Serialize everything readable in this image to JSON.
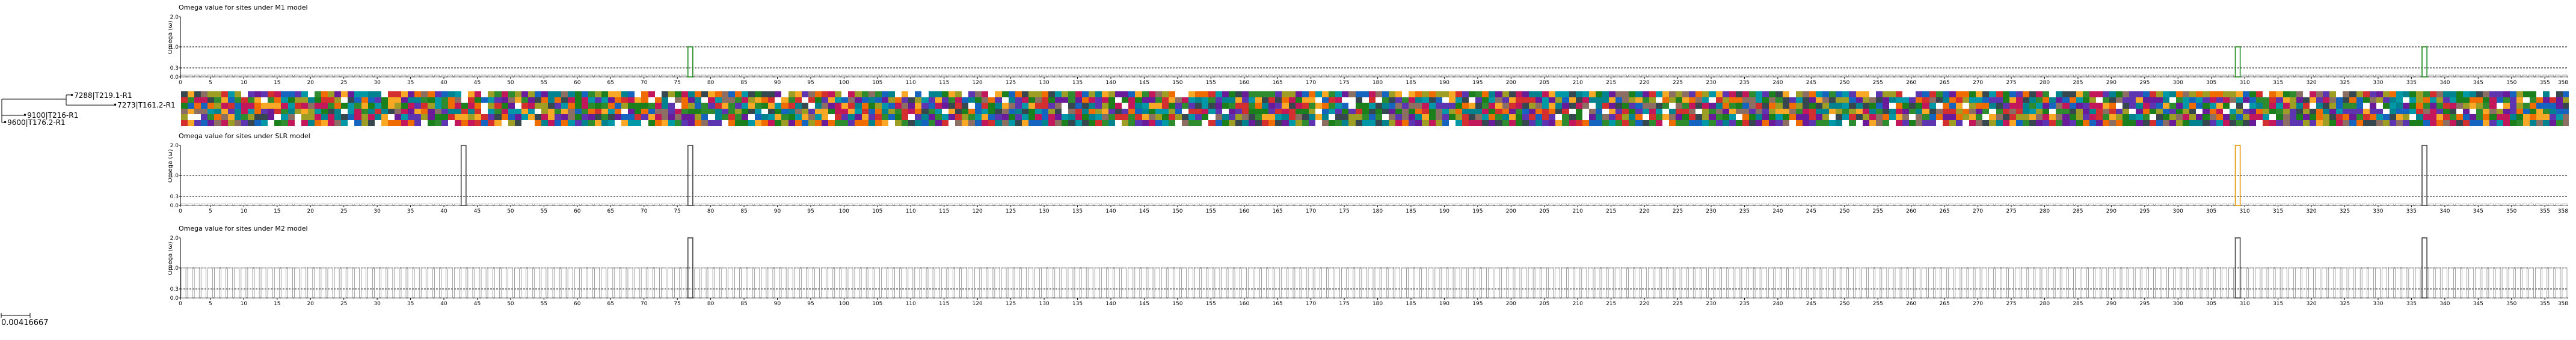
{
  "tree": {
    "leaves": [
      {
        "label": "7288|T219.1-R1"
      },
      {
        "label": "7273|T161.2-R1"
      },
      {
        "label": "9100|T216-R1"
      },
      {
        "label": "9600|T176.2-R1"
      }
    ],
    "scale_label": "0.00416667"
  },
  "panels": [
    {
      "title": "Omega value for sites under M1 model",
      "ylabel": "Omega (ω)",
      "yticks": [
        "2.0",
        "1.0",
        "0.3",
        "0.0"
      ],
      "highlight_sites": [
        {
          "site": 77,
          "omega": 1.0,
          "color": "#1a8a1a"
        },
        {
          "site": 309,
          "omega": 1.0,
          "color": "#1a8a1a"
        },
        {
          "site": 337,
          "omega": 1.0,
          "color": "#1a8a1a"
        }
      ],
      "baseline": "low"
    },
    {
      "title": "Omega value for sites under SLR model",
      "ylabel": "Omega (ω)",
      "yticks": [
        "2.0",
        "1.0",
        "0.3",
        "0.0"
      ],
      "highlight_sites": [
        {
          "site": 43,
          "omega": 2.0,
          "color": "#444444"
        },
        {
          "site": 77,
          "omega": 2.0,
          "color": "#444444"
        },
        {
          "site": 309,
          "omega": 2.0,
          "color": "#e69500"
        },
        {
          "site": 337,
          "omega": 2.0,
          "color": "#444444"
        }
      ],
      "baseline": "zero"
    },
    {
      "title": "Omega value for sites under M2 model",
      "ylabel": "Omega (ω)",
      "yticks": [
        "2.0",
        "1.0",
        "0.3",
        "0.0"
      ],
      "highlight_sites": [
        {
          "site": 77,
          "omega": 2.0,
          "color": "#444444"
        },
        {
          "site": 309,
          "omega": 2.0,
          "color": "#444444"
        },
        {
          "site": 337,
          "omega": 2.0,
          "color": "#444444"
        }
      ],
      "baseline": "one"
    }
  ],
  "alignment": {
    "num_sites": 358,
    "num_sequences": 4
  },
  "colors": {
    "frame": "#000000",
    "bar": "#777777",
    "green": "#1a8a1a",
    "orange": "#e69500"
  }
}
